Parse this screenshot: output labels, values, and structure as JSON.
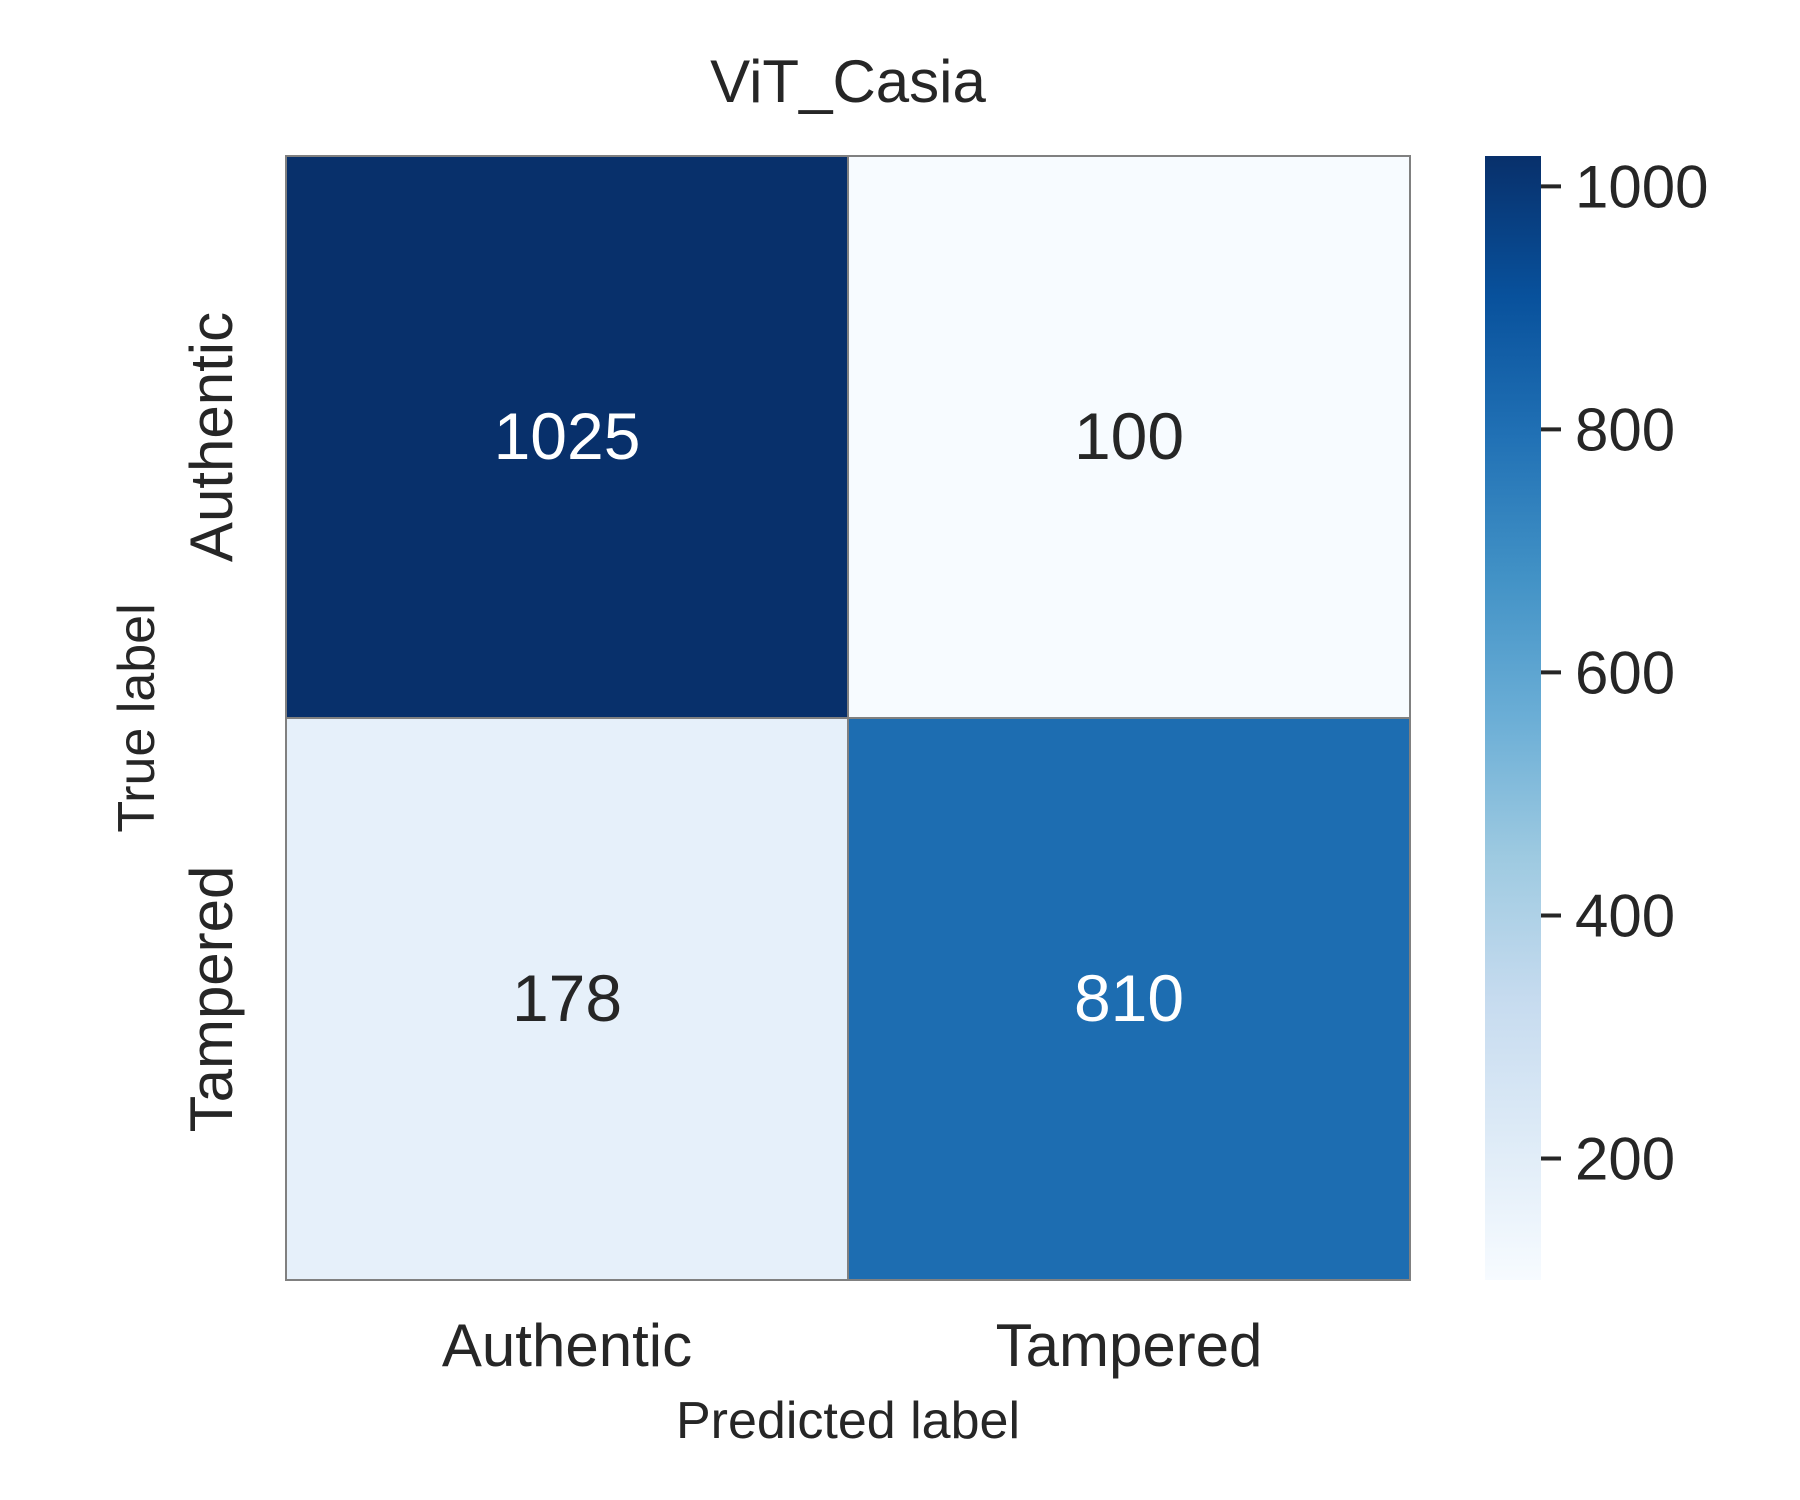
{
  "chart_data": {
    "type": "heatmap",
    "title": "ViT_Casia",
    "xlabel": "Predicted label",
    "ylabel": "True label",
    "x_categories": [
      "Authentic",
      "Tampered"
    ],
    "y_categories": [
      "Authentic",
      "Tampered"
    ],
    "values": [
      [
        1025,
        100
      ],
      [
        178,
        810
      ]
    ],
    "colormap": "Blues",
    "color_range": [
      100,
      1025
    ],
    "colorbar": {
      "ticks": [
        200,
        400,
        600,
        800,
        1000
      ],
      "tick_labels": [
        "200",
        "400",
        "600",
        "800",
        "1000"
      ],
      "position": "right"
    },
    "grid": false,
    "colors": {
      "light": "#f7fbff",
      "dark": "#08306b",
      "cell_border": "#808080",
      "text_dark": "#262626",
      "text_light": "#ffffff"
    }
  }
}
